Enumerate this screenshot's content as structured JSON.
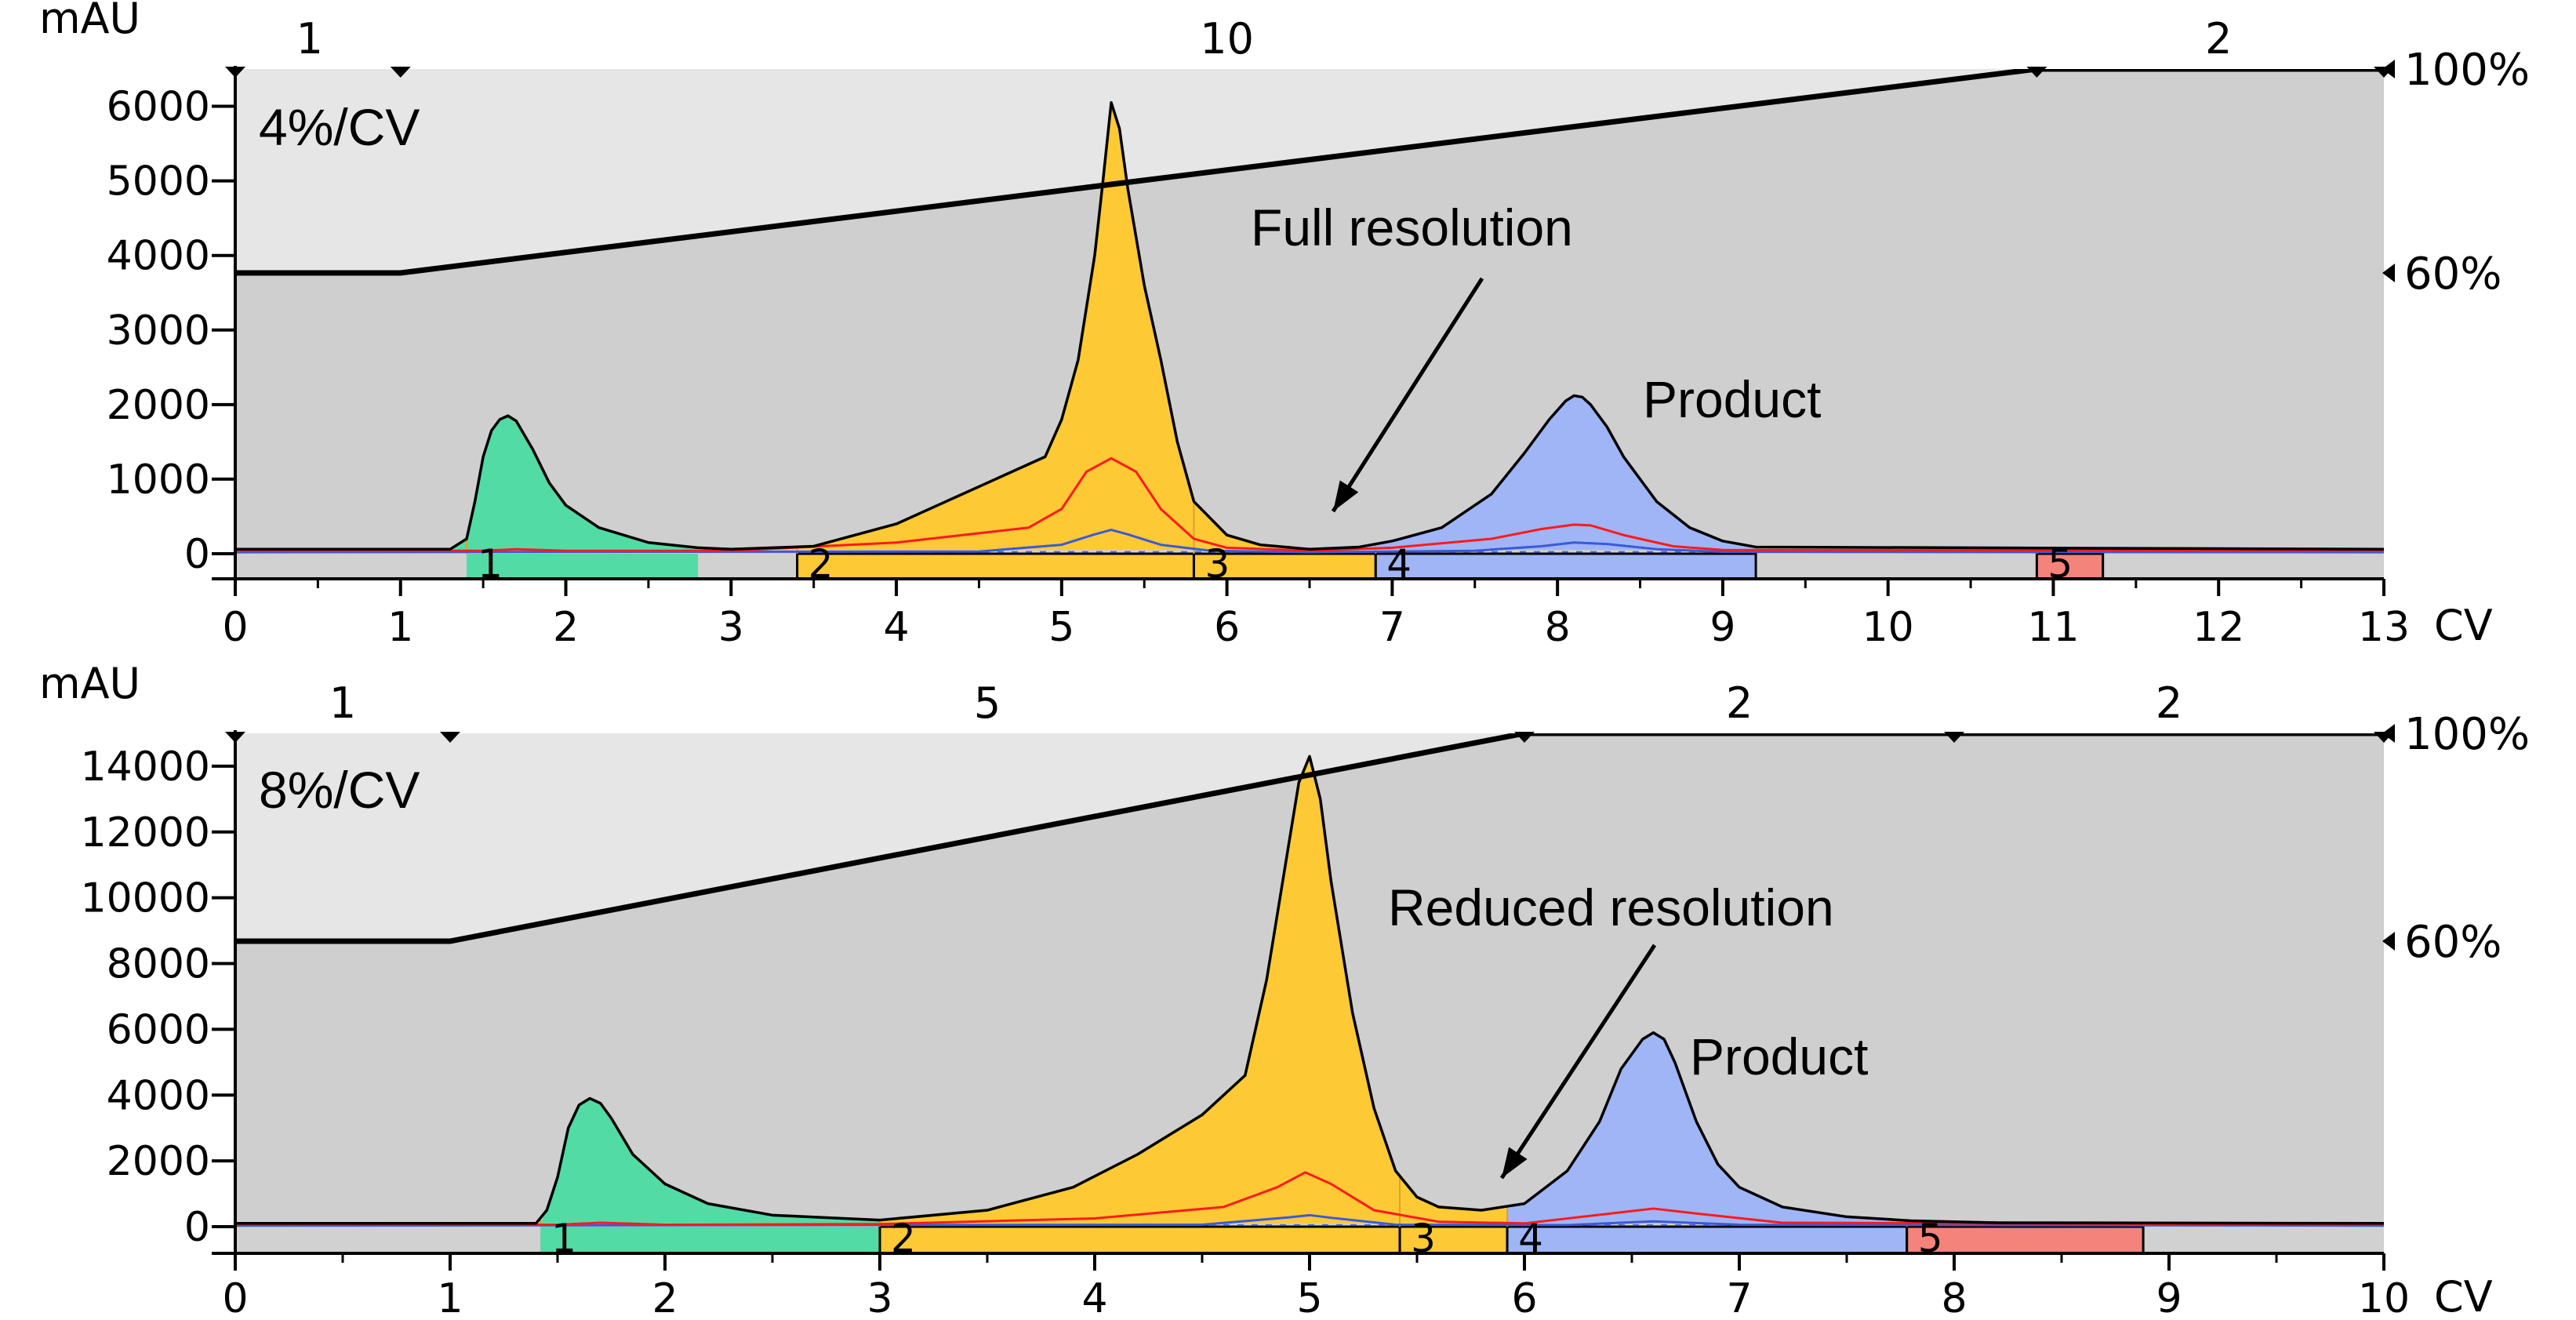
{
  "chart_data": [
    {
      "type": "area",
      "ylabel": "mAU",
      "xunit": "CV",
      "xlim": [
        0,
        13
      ],
      "ylim": [
        0,
        6500
      ],
      "xticks": [
        "0",
        "1",
        "2",
        "3",
        "4",
        "5",
        "6",
        "7",
        "8",
        "9",
        "10",
        "11",
        "12",
        "13"
      ],
      "yticks": [
        "0",
        "1000",
        "2000",
        "3000",
        "4000",
        "5000",
        "6000"
      ],
      "method_text": "4%/CV",
      "annotation": "Full resolution",
      "peak_label": "Product",
      "gradient_labels": [
        "100%",
        "60%"
      ],
      "gradient": {
        "x": [
          0,
          1,
          10.9,
          13
        ],
        "pct": [
          60,
          60,
          100,
          100
        ],
        "axis_range": [
          0,
          100
        ]
      },
      "block_labels": [
        {
          "text": "1",
          "x": 0.45
        },
        {
          "text": "10",
          "x": 6.0
        },
        {
          "text": "2",
          "x": 12.0
        }
      ],
      "block_marks": [
        0,
        1,
        10.9,
        13
      ],
      "fractions": [
        {
          "label": "1",
          "start": 1.4,
          "end": 2.8,
          "color": "#52dba5"
        },
        {
          "label": "2",
          "start": 3.4,
          "end": 5.8,
          "color": "#fdc935"
        },
        {
          "label": "3",
          "start": 5.8,
          "end": 6.9,
          "color": "#fdc935"
        },
        {
          "label": "4",
          "start": 6.9,
          "end": 9.2,
          "color": "#9fb5f6"
        },
        {
          "label": "5",
          "start": 10.9,
          "end": 11.3,
          "color": "#f3837b"
        }
      ],
      "fraction_band_color": "#d1d1d1",
      "baseline_y": 50,
      "series": [
        {
          "role": "uv-main",
          "color": "#000000",
          "x": [
            0,
            1.3,
            1.4,
            1.45,
            1.5,
            1.55,
            1.6,
            1.65,
            1.7,
            1.8,
            1.9,
            2.0,
            2.2,
            2.5,
            2.8,
            3.0,
            3.5,
            4.0,
            4.3,
            4.6,
            4.9,
            5.0,
            5.1,
            5.2,
            5.25,
            5.3,
            5.35,
            5.4,
            5.5,
            5.6,
            5.7,
            5.8,
            6.0,
            6.2,
            6.5,
            6.8,
            7.0,
            7.3,
            7.6,
            7.8,
            7.95,
            8.05,
            8.1,
            8.15,
            8.2,
            8.3,
            8.4,
            8.6,
            8.8,
            9.0,
            9.2,
            13
          ],
          "y": [
            60,
            60,
            200,
            700,
            1300,
            1650,
            1800,
            1850,
            1780,
            1400,
            950,
            650,
            350,
            150,
            80,
            60,
            100,
            400,
            700,
            1000,
            1300,
            1800,
            2600,
            4000,
            5000,
            6050,
            5700,
            4900,
            3600,
            2600,
            1500,
            700,
            250,
            120,
            60,
            90,
            170,
            350,
            800,
            1350,
            1800,
            2050,
            2120,
            2100,
            2000,
            1700,
            1300,
            700,
            350,
            170,
            90,
            60
          ]
        },
        {
          "role": "fraction-fill-1",
          "color": "#52dba5",
          "x": [
            1.3,
            1.4,
            1.45,
            1.5,
            1.55,
            1.6,
            1.65,
            1.7,
            1.8,
            1.9,
            2.0,
            2.2,
            2.5,
            2.8
          ],
          "y": [
            60,
            200,
            700,
            1300,
            1650,
            1800,
            1850,
            1780,
            1400,
            950,
            650,
            350,
            150,
            80
          ]
        },
        {
          "role": "fraction-fill-2-3",
          "color": "#fdc935",
          "x": [
            3.0,
            3.5,
            4.0,
            4.3,
            4.6,
            4.9,
            5.0,
            5.1,
            5.2,
            5.25,
            5.3,
            5.35,
            5.4,
            5.5,
            5.6,
            5.7,
            5.8,
            6.0,
            6.2,
            6.5,
            6.8
          ],
          "y": [
            60,
            100,
            400,
            700,
            1000,
            1300,
            1800,
            2600,
            4000,
            5000,
            6050,
            5700,
            4900,
            3600,
            2600,
            1500,
            700,
            250,
            120,
            60,
            90
          ]
        },
        {
          "role": "fraction-fill-4",
          "color": "#9fb5f6",
          "x": [
            6.8,
            7.0,
            7.3,
            7.6,
            7.8,
            7.95,
            8.05,
            8.1,
            8.15,
            8.2,
            8.3,
            8.4,
            8.6,
            8.8,
            9.0,
            9.2
          ],
          "y": [
            90,
            170,
            350,
            800,
            1350,
            1800,
            2050,
            2120,
            2100,
            2000,
            1700,
            1300,
            700,
            350,
            170,
            90
          ]
        },
        {
          "role": "uv-secondary",
          "color": "#ff1a1a",
          "x": [
            0,
            1.5,
            1.7,
            2.0,
            3.0,
            4.0,
            4.8,
            5.0,
            5.15,
            5.3,
            5.45,
            5.6,
            5.8,
            6.0,
            6.5,
            7.0,
            7.6,
            7.9,
            8.1,
            8.2,
            8.4,
            8.7,
            9.0,
            13
          ],
          "y": [
            40,
            40,
            60,
            40,
            40,
            150,
            350,
            600,
            1100,
            1280,
            1100,
            600,
            200,
            80,
            40,
            80,
            200,
            330,
            390,
            380,
            250,
            100,
            50,
            40
          ]
        },
        {
          "role": "uv-tertiary",
          "color": "#3a5ad8",
          "x": [
            0,
            4.5,
            5.0,
            5.2,
            5.3,
            5.4,
            5.6,
            5.9,
            6.5,
            7.5,
            7.9,
            8.1,
            8.3,
            8.6,
            9.0,
            13
          ],
          "y": [
            20,
            30,
            120,
            260,
            320,
            260,
            120,
            40,
            20,
            40,
            100,
            150,
            130,
            60,
            25,
            20
          ]
        }
      ]
    },
    {
      "type": "area",
      "ylabel": "mAU",
      "xunit": "CV",
      "xlim": [
        0,
        10
      ],
      "ylim": [
        0,
        15000
      ],
      "xticks": [
        "0",
        "1",
        "2",
        "3",
        "4",
        "5",
        "6",
        "7",
        "8",
        "9",
        "10"
      ],
      "yticks": [
        "0",
        "2000",
        "4000",
        "6000",
        "8000",
        "10000",
        "12000",
        "14000"
      ],
      "method_text": "8%/CV",
      "annotation": "Reduced resolution",
      "peak_label": "Product",
      "gradient_labels": [
        "100%",
        "60%"
      ],
      "gradient": {
        "x": [
          0,
          1,
          6,
          10
        ],
        "pct": [
          60,
          60,
          100,
          100
        ],
        "axis_range": [
          0,
          100
        ]
      },
      "block_labels": [
        {
          "text": "1",
          "x": 0.5
        },
        {
          "text": "5",
          "x": 3.5
        },
        {
          "text": "2",
          "x": 7.0
        },
        {
          "text": "2",
          "x": 9.0
        }
      ],
      "block_marks": [
        0,
        1,
        6,
        8,
        10
      ],
      "fractions": [
        {
          "label": "1",
          "start": 1.42,
          "end": 3.0,
          "color": "#52dba5"
        },
        {
          "label": "2",
          "start": 3.0,
          "end": 5.42,
          "color": "#fdc935"
        },
        {
          "label": "3",
          "start": 5.42,
          "end": 5.92,
          "color": "#fdc935"
        },
        {
          "label": "4",
          "start": 5.92,
          "end": 7.78,
          "color": "#9fb5f6"
        },
        {
          "label": "5",
          "start": 7.78,
          "end": 8.88,
          "color": "#f3837b"
        }
      ],
      "fraction_band_color": "#d1d1d1",
      "baseline_y": 100,
      "series": [
        {
          "role": "uv-main",
          "color": "#000000",
          "x": [
            0,
            1.4,
            1.45,
            1.5,
            1.55,
            1.6,
            1.65,
            1.7,
            1.75,
            1.85,
            2.0,
            2.2,
            2.5,
            3.0,
            3.5,
            3.9,
            4.2,
            4.5,
            4.7,
            4.8,
            4.9,
            4.95,
            5.0,
            5.05,
            5.1,
            5.2,
            5.3,
            5.4,
            5.5,
            5.6,
            5.8,
            6.0,
            6.2,
            6.35,
            6.45,
            6.55,
            6.6,
            6.65,
            6.7,
            6.8,
            6.9,
            7.0,
            7.2,
            7.5,
            7.8,
            8.2,
            10
          ],
          "y": [
            100,
            100,
            500,
            1500,
            3000,
            3700,
            3900,
            3750,
            3300,
            2200,
            1300,
            700,
            350,
            200,
            500,
            1200,
            2200,
            3400,
            4600,
            7500,
            11500,
            13500,
            14300,
            13000,
            10500,
            6500,
            3600,
            1700,
            900,
            600,
            500,
            700,
            1700,
            3200,
            4800,
            5700,
            5900,
            5700,
            5000,
            3200,
            1900,
            1200,
            600,
            300,
            180,
            120,
            100
          ]
        },
        {
          "role": "fraction-fill-1",
          "color": "#52dba5",
          "x": [
            1.42,
            1.45,
            1.5,
            1.55,
            1.6,
            1.65,
            1.7,
            1.75,
            1.85,
            2.0,
            2.2,
            2.5,
            3.0
          ],
          "y": [
            100,
            500,
            1500,
            3000,
            3700,
            3900,
            3750,
            3300,
            2200,
            1300,
            700,
            350,
            200
          ]
        },
        {
          "role": "fraction-fill-2-3",
          "color": "#fdc935",
          "x": [
            3.0,
            3.5,
            3.9,
            4.2,
            4.5,
            4.7,
            4.8,
            4.9,
            4.95,
            5.0,
            5.05,
            5.1,
            5.2,
            5.3,
            5.4,
            5.5,
            5.6,
            5.8,
            5.92
          ],
          "y": [
            200,
            500,
            1200,
            2200,
            3400,
            4600,
            7500,
            11500,
            13500,
            14300,
            13000,
            10500,
            6500,
            3600,
            1700,
            900,
            600,
            500,
            560
          ]
        },
        {
          "role": "fraction-fill-4",
          "color": "#9fb5f6",
          "x": [
            5.92,
            6.0,
            6.2,
            6.35,
            6.45,
            6.55,
            6.6,
            6.65,
            6.7,
            6.8,
            6.9,
            7.0,
            7.2,
            7.5,
            7.78
          ],
          "y": [
            560,
            700,
            1700,
            3200,
            4800,
            5700,
            5900,
            5700,
            5000,
            3200,
            1900,
            1200,
            600,
            300,
            190
          ]
        },
        {
          "role": "uv-secondary",
          "color": "#ff1a1a",
          "x": [
            0,
            1.5,
            1.7,
            2.0,
            3.0,
            4.0,
            4.6,
            4.85,
            4.98,
            5.1,
            5.3,
            5.6,
            6.0,
            6.4,
            6.6,
            6.8,
            7.2,
            10
          ],
          "y": [
            60,
            60,
            120,
            60,
            80,
            250,
            600,
            1200,
            1650,
            1300,
            500,
            150,
            100,
            400,
            550,
            400,
            120,
            60
          ]
        },
        {
          "role": "uv-tertiary",
          "color": "#3a5ad8",
          "x": [
            0,
            4.5,
            4.9,
            5.0,
            5.1,
            5.4,
            6.2,
            6.6,
            7.0,
            10
          ],
          "y": [
            30,
            60,
            280,
            350,
            270,
            60,
            50,
            160,
            60,
            30
          ]
        }
      ]
    }
  ]
}
